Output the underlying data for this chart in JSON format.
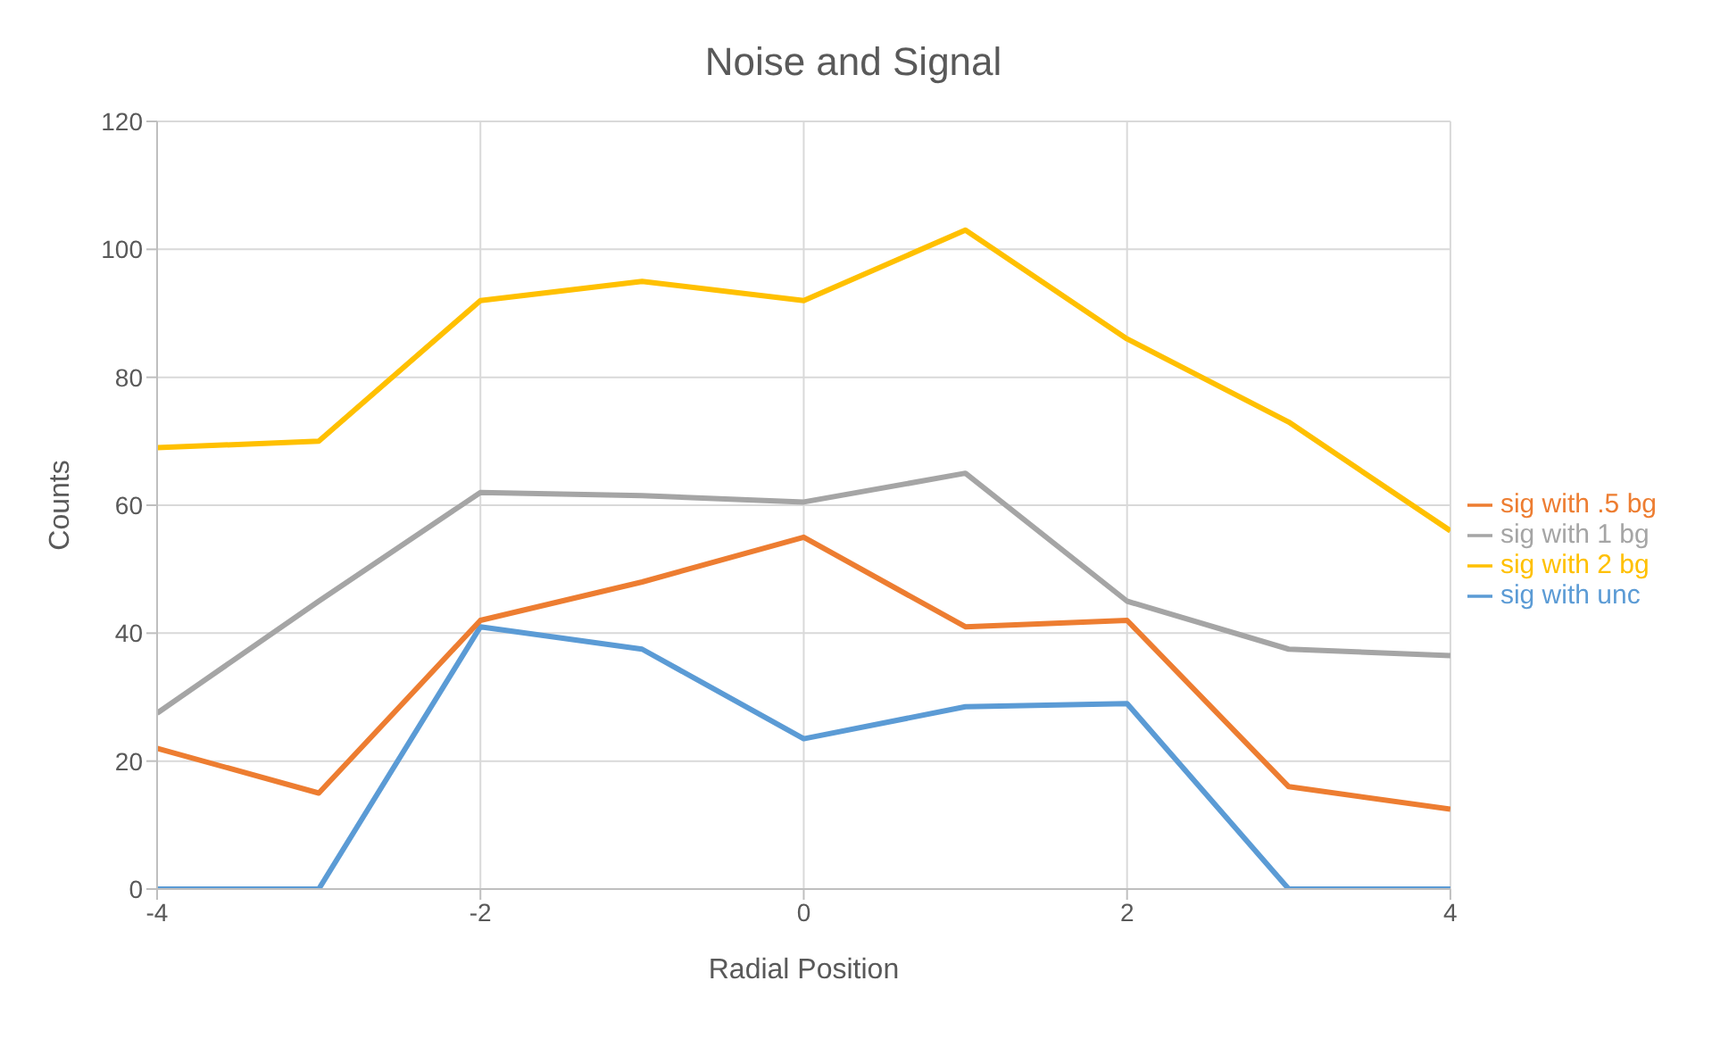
{
  "chart_data": {
    "type": "line",
    "title": "Noise and Signal",
    "xlabel": "Radial Position",
    "ylabel": "Counts",
    "x": [
      -4,
      -3,
      -2,
      -1,
      0,
      1,
      2,
      3,
      4
    ],
    "series": [
      {
        "name": "sig with unc",
        "color": "#5b9bd5",
        "values": [
          0,
          0,
          41,
          37.5,
          23.5,
          28.5,
          29,
          0,
          0
        ]
      },
      {
        "name": "sig with .5 bg",
        "color": "#ed7d31",
        "values": [
          22,
          15,
          42,
          48,
          55,
          41,
          42,
          16,
          12.5
        ]
      },
      {
        "name": "sig with 1 bg",
        "color": "#a5a5a5",
        "values": [
          27.5,
          45,
          62,
          61.5,
          60.5,
          65,
          45,
          37.5,
          36.5
        ]
      },
      {
        "name": "sig with 2 bg",
        "color": "#ffc000",
        "values": [
          69,
          70,
          92,
          95,
          92,
          103,
          86,
          73,
          56
        ]
      }
    ],
    "xlim": [
      -4,
      4
    ],
    "xticks": [
      -4,
      -2,
      0,
      2,
      4
    ],
    "ylim": [
      0,
      120
    ],
    "yticks": [
      0,
      20,
      40,
      60,
      80,
      100,
      120
    ],
    "grid": true,
    "legend": "right",
    "marker": "none",
    "line_style": "solid"
  }
}
